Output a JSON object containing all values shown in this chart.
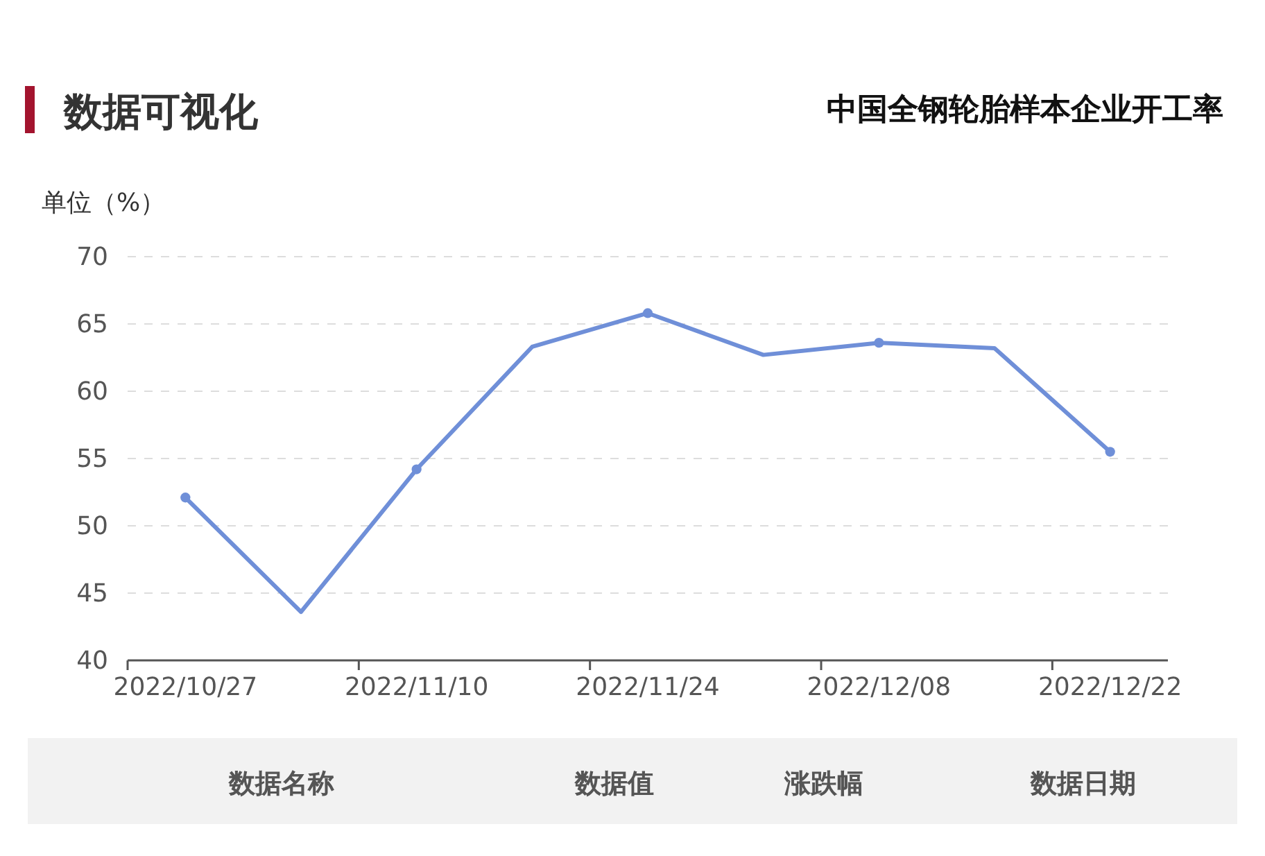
{
  "chart_data": {
    "type": "line",
    "title": "中国全钢轮胎样本企业开工率",
    "subtitle": "数据可视化",
    "ylabel": "单位（%）",
    "categories": [
      "2022/10/27",
      null,
      "2022/11/10",
      null,
      "2022/11/24",
      null,
      "2022/12/08",
      null,
      "2022/12/22"
    ],
    "series": [
      {
        "color": "#6f8fd8",
        "values": [
          52.1,
          43.6,
          54.2,
          63.3,
          65.8,
          62.7,
          63.6,
          63.2,
          55.5
        ]
      }
    ],
    "ylim": [
      40,
      70
    ],
    "yticks": [
      40,
      45,
      50,
      55,
      60,
      65,
      70
    ],
    "grid": "y",
    "marker": "circle",
    "line_style": "solid",
    "annotations": [
      "数据名称",
      "数据值",
      "涨跌幅",
      "数据日期"
    ]
  }
}
